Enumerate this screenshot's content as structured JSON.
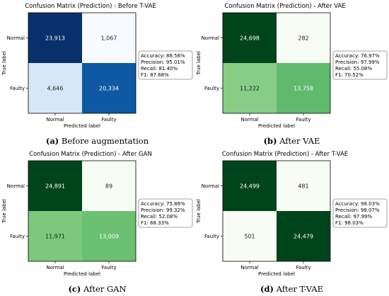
{
  "chart_data": [
    {
      "type": "heatmap",
      "title": "Confusion Matrix (Prediction) - Before T-VAE",
      "xlabel": "Predicted label",
      "ylabel": "True label",
      "x_categories": [
        "Normal",
        "Faulty"
      ],
      "y_categories": [
        "Normal",
        "Faulty"
      ],
      "matrix": [
        [
          "23,913",
          "1,067"
        ],
        [
          "4,646",
          "20,334"
        ]
      ],
      "values": [
        [
          23913,
          1067
        ],
        [
          4646,
          20334
        ]
      ],
      "colormap": "blues",
      "metrics": [
        "Accuracy: 88.56%",
        "Precision: 95.01%",
        "Recall: 81.40%",
        "F1: 87.68%"
      ],
      "caption_label": "(a)",
      "caption_text": "Before augmentation"
    },
    {
      "type": "heatmap",
      "title": "Confusion Matrix (Prediction) - After VAE",
      "xlabel": "Predicted label",
      "ylabel": "True label",
      "x_categories": [
        "Normal",
        "Faulty"
      ],
      "y_categories": [
        "Normal",
        "Faulty"
      ],
      "matrix": [
        [
          "24,698",
          "282"
        ],
        [
          "11,222",
          "13,758"
        ]
      ],
      "values": [
        [
          24698,
          282
        ],
        [
          11222,
          13758
        ]
      ],
      "colormap": "greens",
      "metrics": [
        "Accuracy: 76.97%",
        "Precision: 97.99%",
        "Recall: 55.08%",
        "F1: 70.52%"
      ],
      "caption_label": "(b)",
      "caption_text": "After VAE"
    },
    {
      "type": "heatmap",
      "title": "Confusion Matrix (Prediction) - After GAN",
      "xlabel": "Predicted label",
      "ylabel": "True label",
      "x_categories": [
        "Normal",
        "Faulty"
      ],
      "y_categories": [
        "Normal",
        "Faulty"
      ],
      "matrix": [
        [
          "24,891",
          "89"
        ],
        [
          "11,971",
          "13,009"
        ]
      ],
      "values": [
        [
          24891,
          89
        ],
        [
          11971,
          13009
        ]
      ],
      "colormap": "greens",
      "metrics": [
        "Accuracy: 75.86%",
        "Precision: 99.32%",
        "Recall: 52.08%",
        "F1: 68.33%"
      ],
      "caption_label": "(c)",
      "caption_text": "After GAN"
    },
    {
      "type": "heatmap",
      "title": "Confusion Matrix (Prediction) - After T-VAE",
      "xlabel": "Predicted label",
      "ylabel": "True label",
      "x_categories": [
        "Normal",
        "Faulty"
      ],
      "y_categories": [
        "Normal",
        "Faulty"
      ],
      "matrix": [
        [
          "24,499",
          "481"
        ],
        [
          "501",
          "24,479"
        ]
      ],
      "values": [
        [
          24499,
          481
        ],
        [
          501,
          24479
        ]
      ],
      "colormap": "greens",
      "metrics": [
        "Accuracy: 98.03%",
        "Precision: 98.07%",
        "Recall: 97.99%",
        "F1: 98.03%"
      ],
      "caption_label": "(d)",
      "caption_text": "After T-VAE"
    }
  ]
}
